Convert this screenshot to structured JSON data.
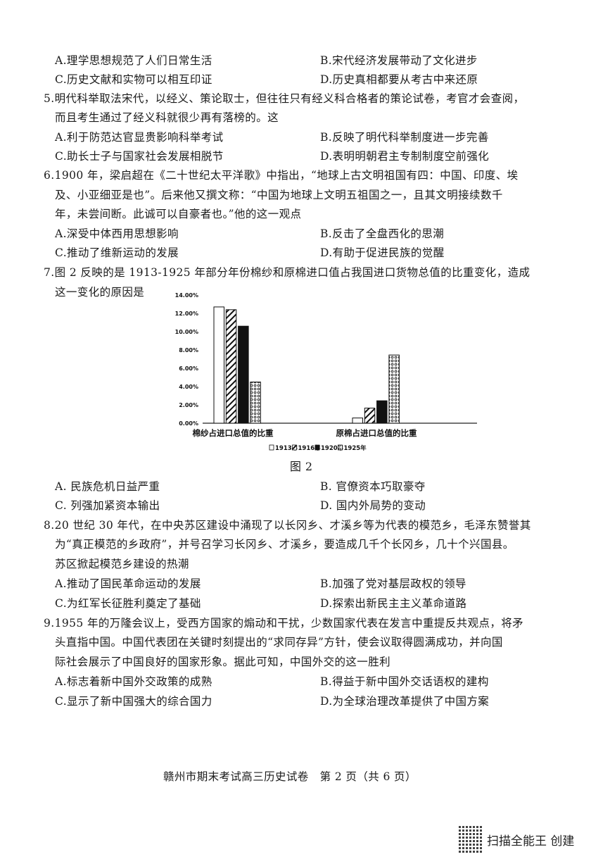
{
  "q4_options": {
    "A": "A.理学思想规范了人们日常生活",
    "B": "B.宋代经济发展带动了文化进步",
    "C": "C.历史文献和实物可以相互印证",
    "D": "D.历史真相都要从考古中来还原"
  },
  "q5": {
    "lines": [
      "5.明代科举取法宋代，以经义、策论取士，但往往只有经义科合格者的策论试卷，考官才会查阅，",
      "而且考生通过了经义科就很少再有落榜的。这"
    ],
    "A": "A.利于防范达官显贵影响科举考试",
    "B": "B.反映了明代科举制度进一步完善",
    "C": "C.助长士子与国家社会发展相脱节",
    "D": "D.表明明朝君主专制制度空前强化"
  },
  "q6": {
    "lines": [
      "6.1900 年，梁启超在《二十世纪太平洋歌》中指出，“地球上古文明祖国有四：中国、印度、埃",
      "及、小亚细亚是也”。后来他又撰文称：“中国为地球上文明五祖国之一，且其文明接续数千",
      "年，未尝间断。此诚可以自豪者也。”他的这一观点"
    ],
    "A": "A.深受中体西用思想影响",
    "B": "B.反击了全盘西化的思潮",
    "C": "C.推动了维新运动的发展",
    "D": "D.有助于促进民族的觉醒"
  },
  "q7": {
    "lines": [
      "7.图 2 反映的是 1913-1925 年部分年份棉纱和原棉进口值占我国进口货物总值的比重变化，造成",
      "这一变化的原因是"
    ],
    "figure_caption": "图 2",
    "A": "A. 民族危机日益严重",
    "B": "B. 官僚资本巧取豪夺",
    "C": "C. 列强加紧资本输出",
    "D": "D. 国内外局势的变动"
  },
  "chart_data": {
    "type": "bar",
    "categories": [
      "棉纱占进口总值的比重",
      "原棉占进口总值的比重"
    ],
    "series": [
      {
        "name": "1913年",
        "values": [
          12.7,
          0.57
        ],
        "pattern": "empty"
      },
      {
        "name": "1916年",
        "values": [
          12.4,
          1.65
        ],
        "pattern": "hatch"
      },
      {
        "name": "1920年",
        "values": [
          10.6,
          2.45
        ],
        "pattern": "solid"
      },
      {
        "name": "1925年",
        "values": [
          4.5,
          7.45
        ],
        "pattern": "dots"
      }
    ],
    "ylim": [
      0,
      14
    ],
    "yticks": [
      "0.00%",
      "2.00%",
      "4.00%",
      "6.00%",
      "8.00%",
      "10.00%",
      "12.00%",
      "14.00%"
    ],
    "grid": false,
    "legend_position": "bottom"
  },
  "q8": {
    "lines": [
      "8.20 世纪 30 年代，在中央苏区建设中涌现了以长冈乡、才溪乡等为代表的模范乡，毛泽东赞誉其",
      "为“真正模范的乡政府”，并号召学习长冈乡、才溪乡，要造成几千个长冈乡，几十个兴国县。",
      "苏区掀起模范乡建设的热潮"
    ],
    "A": "A.推动了国民革命运动的发展",
    "B": "B.加强了党对基层政权的领导",
    "C": "C.为红军长征胜利奠定了基础",
    "D": "D.探索出新民主主义革命道路"
  },
  "q9": {
    "lines": [
      "9.1955 年的万隆会议上，受西方国家的煽动和干扰，少数国家代表在发言中重提反共观点，将矛",
      "头直指中国。中国代表团在关键时刻提出的“求同存异”方针，使会议取得圆满成功，并向国",
      "际社会展示了中国良好的国家形象。据此可知，中国外交的这一胜利"
    ],
    "A": "A.标志着新中国外交政策的成熟",
    "B": "B.得益于新中国外交话语权的建构",
    "C": "C.显示了新中国强大的综合国力",
    "D": "D.为全球治理改革提供了中国方案"
  },
  "footer": "赣州市期末考试高三历史试卷　第 2 页（共 6 页）",
  "watermark": {
    "text": "扫描全能王 创建",
    "icon": "qr-code-icon"
  }
}
